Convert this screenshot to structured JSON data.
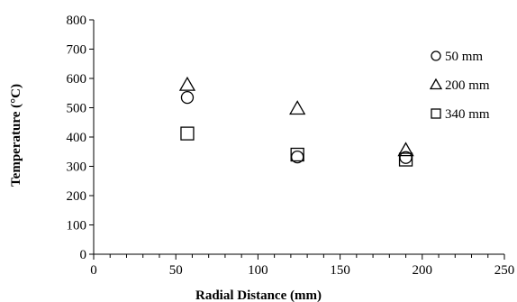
{
  "chart_data": {
    "type": "scatter",
    "title": "",
    "xlabel": "Radial Distance (mm)",
    "ylabel": "Temperature (°C)",
    "xlim": [
      0,
      250
    ],
    "ylim": [
      0,
      800
    ],
    "x_ticks": [
      0,
      50,
      100,
      150,
      200,
      250
    ],
    "y_ticks": [
      0,
      100,
      200,
      300,
      400,
      500,
      600,
      700,
      800
    ],
    "grid": false,
    "legend_position": "right",
    "series": [
      {
        "name": "50 mm",
        "marker": "circle",
        "points": [
          [
            57,
            535
          ],
          [
            124,
            332
          ],
          [
            190,
            330
          ]
        ]
      },
      {
        "name": "200 mm",
        "marker": "triangle",
        "points": [
          [
            57,
            578
          ],
          [
            124,
            497
          ],
          [
            190,
            355
          ]
        ]
      },
      {
        "name": "340 mm",
        "marker": "square",
        "points": [
          [
            57,
            412
          ],
          [
            124,
            340
          ],
          [
            190,
            323
          ]
        ]
      }
    ]
  }
}
